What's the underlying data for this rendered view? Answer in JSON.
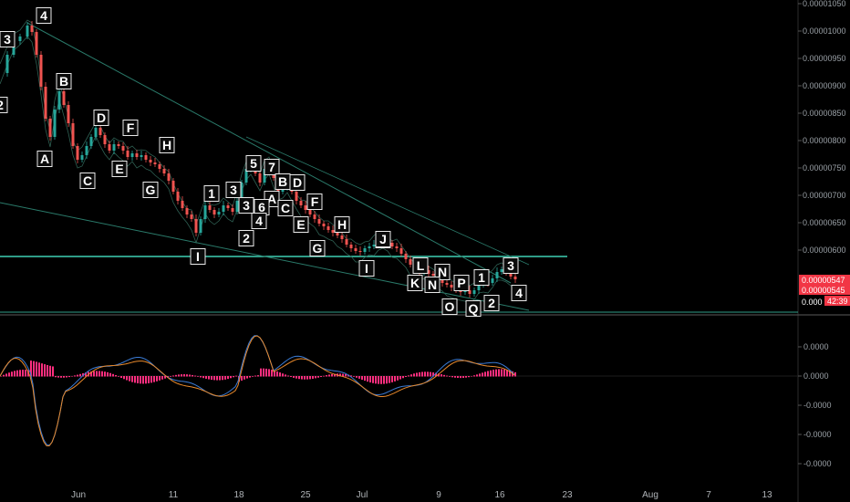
{
  "chart_data": [
    {
      "type": "candlestick",
      "title": "",
      "x_ticks": [
        "Jun",
        "11",
        "18",
        "25",
        "Jul",
        "9",
        "16",
        "23",
        "Aug",
        "7",
        "13"
      ],
      "y_ticks": [
        "0.00001050",
        "0.00001000",
        "0.00000950",
        "0.00000900",
        "0.00000850",
        "0.00000800",
        "0.00000750",
        "0.00000700",
        "0.00000650",
        "0.00000600"
      ],
      "ylim": [
        5.18e-06,
        1.05e-05
      ],
      "price_tags": [
        {
          "label": "0.00000547",
          "color": "#f23645"
        },
        {
          "label": "0.00000545",
          "color": "#f23645"
        },
        {
          "label": "0.000",
          "color": "#ffffff"
        },
        {
          "label": "42:39",
          "color": "#f23645"
        }
      ],
      "horizontal_line": 5.8e-06,
      "wave_labels": [
        {
          "text": "4",
          "x": 0.0,
          "y": 1.02e-05
        },
        {
          "text": "3",
          "x": 0.0,
          "y": 9.85e-06
        },
        {
          "text": "2",
          "x": 0.0,
          "y": 8.55e-06
        },
        {
          "text": "B",
          "x": 0.0,
          "y": 8.9e-06
        },
        {
          "text": "A",
          "x": 0.0,
          "y": 7.6e-06
        },
        {
          "text": "D",
          "x": 0.0,
          "y": 8.45e-06
        },
        {
          "text": "F",
          "x": 0.0,
          "y": 8.2e-06
        },
        {
          "text": "C",
          "x": 0.0,
          "y": 7.25e-06
        },
        {
          "text": "E",
          "x": 0.0,
          "y": 7.45e-06
        },
        {
          "text": "H",
          "x": 0.0,
          "y": 7.95e-06
        },
        {
          "text": "G",
          "x": 0.0,
          "y": 7.1e-06
        },
        {
          "text": "1",
          "x": 0.0,
          "y": 7.05e-06
        },
        {
          "text": "3",
          "x": 0.0,
          "y": 7.1e-06
        },
        {
          "text": "5",
          "x": 0.0,
          "y": 7.6e-06
        },
        {
          "text": "7",
          "x": 0.0,
          "y": 7.55e-06
        },
        {
          "text": "B",
          "x": 0.0,
          "y": 7.3e-06
        },
        {
          "text": "D",
          "x": 0.0,
          "y": 7.3e-06
        },
        {
          "text": "A",
          "x": 0.0,
          "y": 7e-06
        },
        {
          "text": "3",
          "x": 0.0,
          "y": 6.85e-06
        },
        {
          "text": "6",
          "x": 0.0,
          "y": 6.8e-06
        },
        {
          "text": "C",
          "x": 0.0,
          "y": 6.8e-06
        },
        {
          "text": "F",
          "x": 0.0,
          "y": 6.9e-06
        },
        {
          "text": "4",
          "x": 0.0,
          "y": 6.6e-06
        },
        {
          "text": "E",
          "x": 0.0,
          "y": 6.55e-06
        },
        {
          "text": "H",
          "x": 0.0,
          "y": 6.4e-06
        },
        {
          "text": "2",
          "x": 0.0,
          "y": 6.2e-06
        },
        {
          "text": "G",
          "x": 0.0,
          "y": 6e-06
        },
        {
          "text": "I",
          "x": 0.0,
          "y": 5.75e-06
        },
        {
          "text": "1",
          "x": 0.0,
          "y": 6.15e-06
        },
        {
          "text": "I",
          "x": 0.0,
          "y": 5.65e-06
        },
        {
          "text": "J",
          "x": 0.0,
          "y": 5.7e-06
        },
        {
          "text": "K",
          "x": 0.0,
          "y": 5.45e-06
        },
        {
          "text": "L",
          "x": 0.0,
          "y": 5.65e-06
        },
        {
          "text": "N",
          "x": 0.0,
          "y": 5.6e-06
        },
        {
          "text": "N",
          "x": 0.0,
          "y": 5.4e-06
        },
        {
          "text": "P",
          "x": 0.0,
          "y": 5.4e-06
        },
        {
          "text": "1",
          "x": 0.0,
          "y": 5.5e-06
        },
        {
          "text": "3",
          "x": 0.0,
          "y": 5.7e-06
        },
        {
          "text": "4",
          "x": 0.0,
          "y": 5.35e-06
        },
        {
          "text": "O",
          "x": 0.0,
          "y": 5.15e-06
        },
        {
          "text": "Q",
          "x": 0.0,
          "y": 5.15e-06
        },
        {
          "text": "2",
          "x": 0.0,
          "y": 5.2e-06
        }
      ]
    },
    {
      "type": "line",
      "title": "",
      "y_ticks": [
        "0.0000",
        "0.0000",
        "-0.0000",
        "-0.0000",
        "-0.0000"
      ],
      "series": [
        {
          "color": "#3a7bd5"
        },
        {
          "color": "#e8892b"
        },
        {
          "color": "#ff2e7e"
        }
      ]
    }
  ],
  "colors": {
    "background": "#000000",
    "up": "#26a69a",
    "down": "#ef5350",
    "trendline": "#2a7a6a",
    "support": "#3fd0b4",
    "histogram": "#ff2e7e",
    "macd": "#3a7bd5",
    "signal": "#e8892b"
  }
}
